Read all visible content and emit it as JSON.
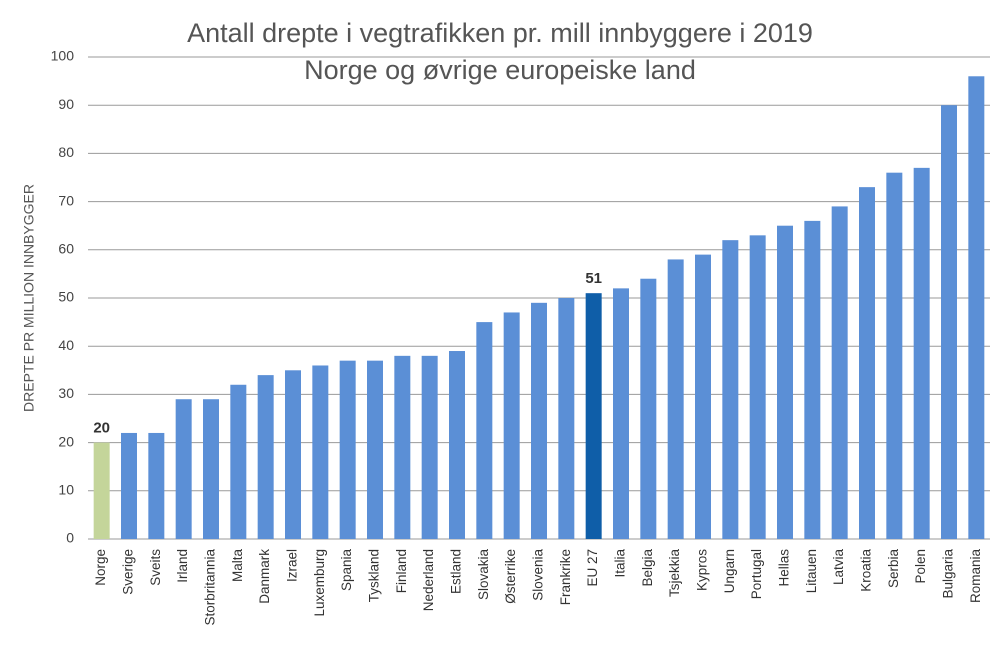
{
  "chart_data": {
    "type": "bar",
    "title": "Antall drepte i vegtrafikken pr. mill innbyggere i 2019",
    "subtitle": "Norge og øvrige europeiske land",
    "y_label": "DREPTE PR MILLION INNBYGGER",
    "categories": [
      "Norge",
      "Sverige",
      "Sveits",
      "Irland",
      "Storbritannia",
      "Malta",
      "Danmark",
      "Izrael",
      "Luxemburg",
      "Spania",
      "Tyskland",
      "Finland",
      "Nederland",
      "Estland",
      "Slovakia",
      "Østerrike",
      "Slovenia",
      "Frankrike",
      "EU 27",
      "Italia",
      "Belgia",
      "Tsjekkia",
      "Kypros",
      "Ungarn",
      "Portugal",
      "Hellas",
      "Litauen",
      "Latvia",
      "Kroatia",
      "Serbia",
      "Polen",
      "Bulgaria",
      "Romania"
    ],
    "values": [
      20,
      22,
      22,
      29,
      29,
      32,
      34,
      35,
      36,
      37,
      37,
      38,
      38,
      39,
      45,
      47,
      49,
      50,
      51,
      52,
      54,
      58,
      59,
      62,
      63,
      65,
      66,
      69,
      73,
      76,
      77,
      90,
      96
    ],
    "color": "#5b8fd6",
    "bar_colors": [
      "#c4d59a",
      "#5b8fd6",
      "#5b8fd6",
      "#5b8fd6",
      "#5b8fd6",
      "#5b8fd6",
      "#5b8fd6",
      "#5b8fd6",
      "#5b8fd6",
      "#5b8fd6",
      "#5b8fd6",
      "#5b8fd6",
      "#5b8fd6",
      "#5b8fd6",
      "#5b8fd6",
      "#5b8fd6",
      "#5b8fd6",
      "#5b8fd6",
      "#0f5ea8",
      "#5b8fd6",
      "#5b8fd6",
      "#5b8fd6",
      "#5b8fd6",
      "#5b8fd6",
      "#5b8fd6",
      "#5b8fd6",
      "#5b8fd6",
      "#5b8fd6",
      "#5b8fd6",
      "#5b8fd6",
      "#5b8fd6",
      "#5b8fd6",
      "#5b8fd6"
    ],
    "ylim": [
      0,
      100
    ],
    "yticks": [
      0,
      10,
      20,
      30,
      40,
      50,
      60,
      70,
      80,
      90,
      100
    ],
    "grid": true
  }
}
